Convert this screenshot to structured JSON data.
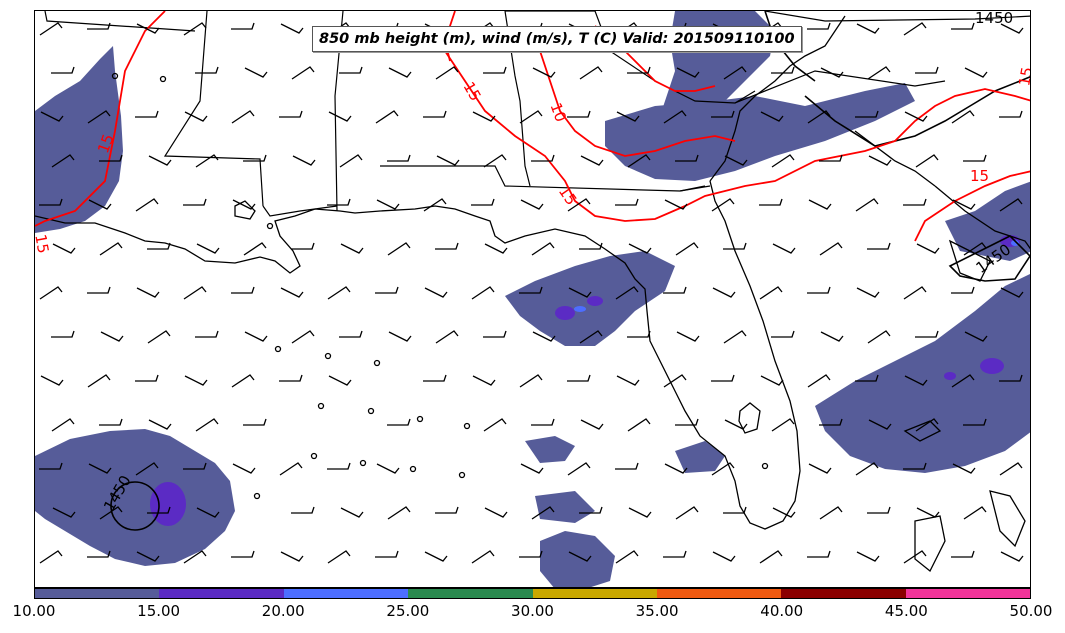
{
  "title": "850 mb height (m), wind (m/s), T (C) Valid: 201509110100",
  "colorbar": {
    "ticks": [
      "10.00",
      "15.00",
      "20.00",
      "25.00",
      "30.00",
      "35.00",
      "40.00",
      "45.00",
      "50.00"
    ],
    "colors": [
      "#565c99",
      "#5b2bc4",
      "#4d6eff",
      "#2a8a4f",
      "#c9a800",
      "#f05a10",
      "#8b0000",
      "#f2349a"
    ]
  },
  "contours": {
    "height_labels": [
      "1450",
      "1450",
      "1450"
    ],
    "temperature_labels": [
      "15",
      "15",
      "15",
      "15",
      "10",
      "5",
      "15",
      "15"
    ],
    "height_color": "#000000",
    "temperature_color": "#ff0000"
  },
  "shading_color": "#565c99"
}
